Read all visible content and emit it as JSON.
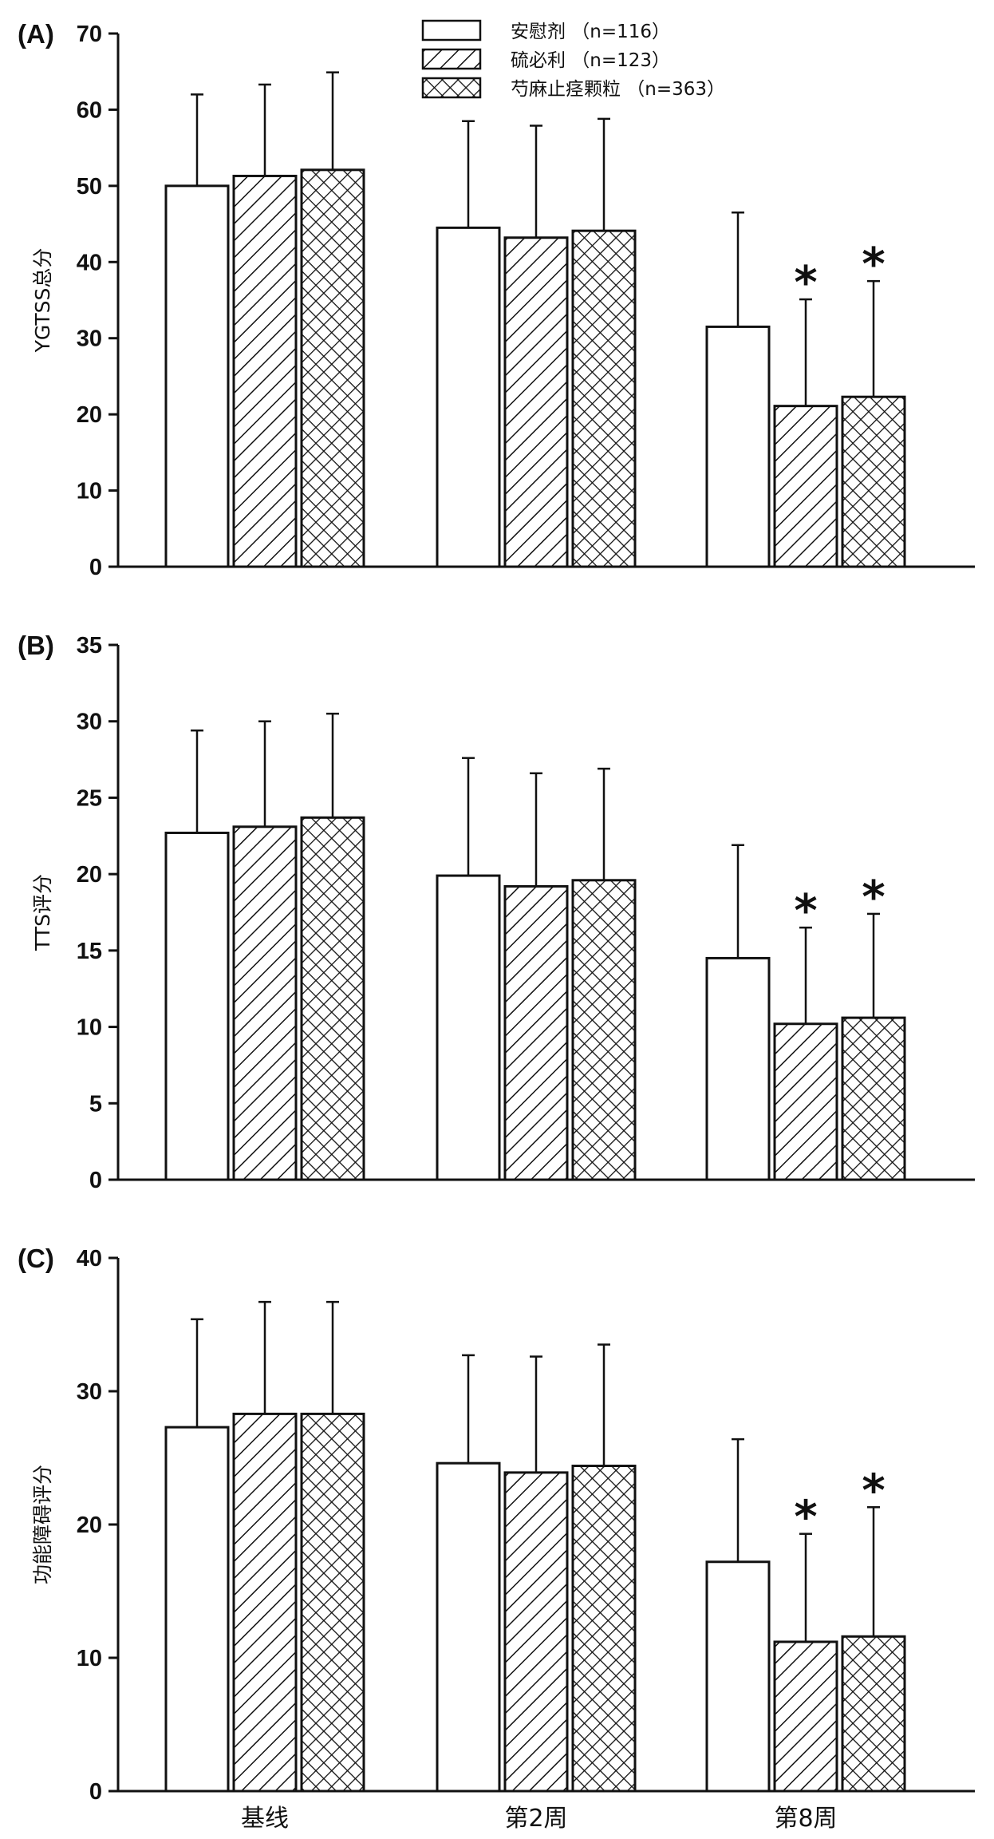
{
  "chart_data": [
    {
      "type": "bar",
      "panel_label": "(A)",
      "title": "",
      "xlabel": "",
      "ylabel": "YGTSS总分",
      "ylim": [
        0,
        70
      ],
      "yticks": [
        0,
        10,
        20,
        30,
        40,
        50,
        60,
        70
      ],
      "categories": [
        "基线",
        "第2周",
        "第8周"
      ],
      "series": [
        {
          "name": "安慰剂 （n=116）",
          "values": [
            50,
            44.5,
            31.5
          ],
          "errors": [
            12,
            14,
            15
          ]
        },
        {
          "name": "硫必利 （n=123）",
          "values": [
            51.3,
            43.2,
            21.1
          ],
          "errors": [
            12,
            14.7,
            14
          ]
        },
        {
          "name": "芍麻止痉颗粒 （n=363）",
          "values": [
            52.1,
            44.1,
            22.3
          ],
          "errors": [
            12.8,
            14.7,
            15.2
          ]
        }
      ],
      "significance": [
        {
          "category": "第8周",
          "series": 1,
          "label": "*"
        },
        {
          "category": "第8周",
          "series": 2,
          "label": "*"
        }
      ],
      "legend_position": "top-center"
    },
    {
      "type": "bar",
      "panel_label": "(B)",
      "title": "",
      "xlabel": "",
      "ylabel": "TTS评分",
      "ylim": [
        0,
        35
      ],
      "yticks": [
        0,
        5,
        10,
        15,
        20,
        25,
        30,
        35
      ],
      "categories": [
        "基线",
        "第2周",
        "第8周"
      ],
      "series": [
        {
          "name": "安慰剂 （n=116）",
          "values": [
            22.7,
            19.9,
            14.5
          ],
          "errors": [
            6.7,
            7.7,
            7.4
          ]
        },
        {
          "name": "硫必利 （n=123）",
          "values": [
            23.1,
            19.2,
            10.2
          ],
          "errors": [
            6.9,
            7.4,
            6.3
          ]
        },
        {
          "name": "芍麻止痉颗粒 （n=363）",
          "values": [
            23.7,
            19.6,
            10.6
          ],
          "errors": [
            6.8,
            7.3,
            6.8
          ]
        }
      ],
      "significance": [
        {
          "category": "第8周",
          "series": 1,
          "label": "*"
        },
        {
          "category": "第8周",
          "series": 2,
          "label": "*"
        }
      ]
    },
    {
      "type": "bar",
      "panel_label": "(C)",
      "title": "",
      "xlabel": "",
      "ylabel": "功能障碍评分",
      "ylim": [
        0,
        40
      ],
      "yticks": [
        0,
        10,
        20,
        30,
        40
      ],
      "categories": [
        "基线",
        "第2周",
        "第8周"
      ],
      "series": [
        {
          "name": "安慰剂 （n=116）",
          "values": [
            27.3,
            24.6,
            17.2
          ],
          "errors": [
            8.1,
            8.1,
            9.2
          ]
        },
        {
          "name": "硫必利 （n=123）",
          "values": [
            28.3,
            23.9,
            11.2
          ],
          "errors": [
            8.4,
            8.7,
            8.1
          ]
        },
        {
          "name": "芍麻止痉颗粒 （n=363）",
          "values": [
            28.3,
            24.4,
            11.6
          ],
          "errors": [
            8.4,
            9.1,
            9.7
          ]
        }
      ],
      "significance": [
        {
          "category": "第8周",
          "series": 1,
          "label": "*"
        },
        {
          "category": "第8周",
          "series": 2,
          "label": "*"
        }
      ]
    }
  ],
  "legend": {
    "items": [
      {
        "label": "安慰剂 （n=116）",
        "pattern": "empty"
      },
      {
        "label": "硫必利 （n=123）",
        "pattern": "diagonal"
      },
      {
        "label": "芍麻止痉颗粒 （n=363）",
        "pattern": "crosshatch"
      }
    ]
  },
  "colors": {
    "ink": "#111111",
    "fill": "#ffffff"
  }
}
